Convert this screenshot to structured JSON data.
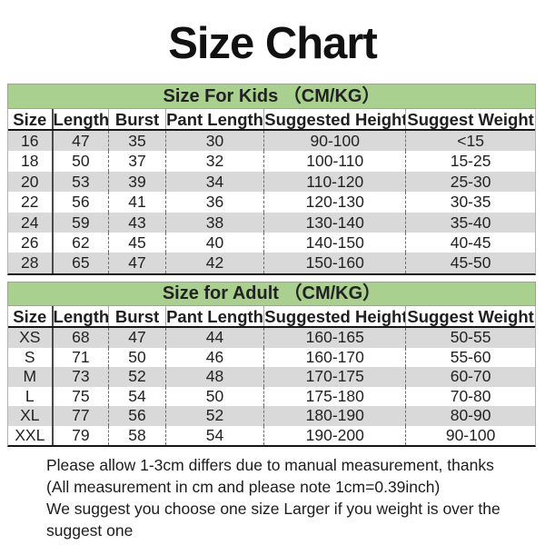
{
  "page": {
    "title": "Size Chart",
    "background": "#ffffff"
  },
  "colors": {
    "banner_green": "#a9d08e",
    "row_shade": "#d9d9d9",
    "rule_dark": "#161616"
  },
  "columns": [
    "Size",
    "Length",
    "Burst",
    "Pant Length",
    "Suggested Height",
    "Suggest Weight"
  ],
  "kids": {
    "banner": "Size For Kids （CM/KG）",
    "rows": [
      [
        "16",
        "47",
        "35",
        "30",
        "90-100",
        "<15"
      ],
      [
        "18",
        "50",
        "37",
        "32",
        "100-110",
        "15-25"
      ],
      [
        "20",
        "53",
        "39",
        "34",
        "110-120",
        "25-30"
      ],
      [
        "22",
        "56",
        "41",
        "36",
        "120-130",
        "30-35"
      ],
      [
        "24",
        "59",
        "43",
        "38",
        "130-140",
        "35-40"
      ],
      [
        "26",
        "62",
        "45",
        "40",
        "140-150",
        "40-45"
      ],
      [
        "28",
        "65",
        "47",
        "42",
        "150-160",
        "45-50"
      ]
    ]
  },
  "adult": {
    "banner": "Size for Adult （CM/KG）",
    "rows": [
      [
        "XS",
        "68",
        "47",
        "44",
        "160-165",
        "50-55"
      ],
      [
        "S",
        "71",
        "50",
        "46",
        "160-170",
        "55-60"
      ],
      [
        "M",
        "73",
        "52",
        "48",
        "170-175",
        "60-70"
      ],
      [
        "L",
        "75",
        "54",
        "50",
        "175-180",
        "70-80"
      ],
      [
        "XL",
        "77",
        "56",
        "52",
        "180-190",
        "80-90"
      ],
      [
        "XXL",
        "79",
        "58",
        "54",
        "190-200",
        "90-100"
      ]
    ]
  },
  "footer": {
    "line1": "Please allow 1-3cm differs due to manual measurement, thanks",
    "line2": "(All measurement in cm and please note 1cm=0.39inch)",
    "line3": "We suggest you choose one size Larger if you weight is over the suggest one"
  },
  "chart_data": [
    {
      "type": "table",
      "title": "Size For Kids （CM/KG）",
      "columns": [
        "Size",
        "Length",
        "Burst",
        "Pant Length",
        "Suggested Height",
        "Suggest Weight"
      ],
      "rows": [
        [
          "16",
          "47",
          "35",
          "30",
          "90-100",
          "<15"
        ],
        [
          "18",
          "50",
          "37",
          "32",
          "100-110",
          "15-25"
        ],
        [
          "20",
          "53",
          "39",
          "34",
          "110-120",
          "25-30"
        ],
        [
          "22",
          "56",
          "41",
          "36",
          "120-130",
          "30-35"
        ],
        [
          "24",
          "59",
          "43",
          "38",
          "130-140",
          "35-40"
        ],
        [
          "26",
          "62",
          "45",
          "40",
          "140-150",
          "40-45"
        ],
        [
          "28",
          "65",
          "47",
          "42",
          "150-160",
          "45-50"
        ]
      ]
    },
    {
      "type": "table",
      "title": "Size for Adult （CM/KG）",
      "columns": [
        "Size",
        "Length",
        "Burst",
        "Pant Length",
        "Suggested Height",
        "Suggest Weight"
      ],
      "rows": [
        [
          "XS",
          "68",
          "47",
          "44",
          "160-165",
          "50-55"
        ],
        [
          "S",
          "71",
          "50",
          "46",
          "160-170",
          "55-60"
        ],
        [
          "M",
          "73",
          "52",
          "48",
          "170-175",
          "60-70"
        ],
        [
          "L",
          "75",
          "54",
          "50",
          "175-180",
          "70-80"
        ],
        [
          "XL",
          "77",
          "56",
          "52",
          "180-190",
          "80-90"
        ],
        [
          "XXL",
          "79",
          "58",
          "54",
          "190-200",
          "90-100"
        ]
      ]
    }
  ]
}
